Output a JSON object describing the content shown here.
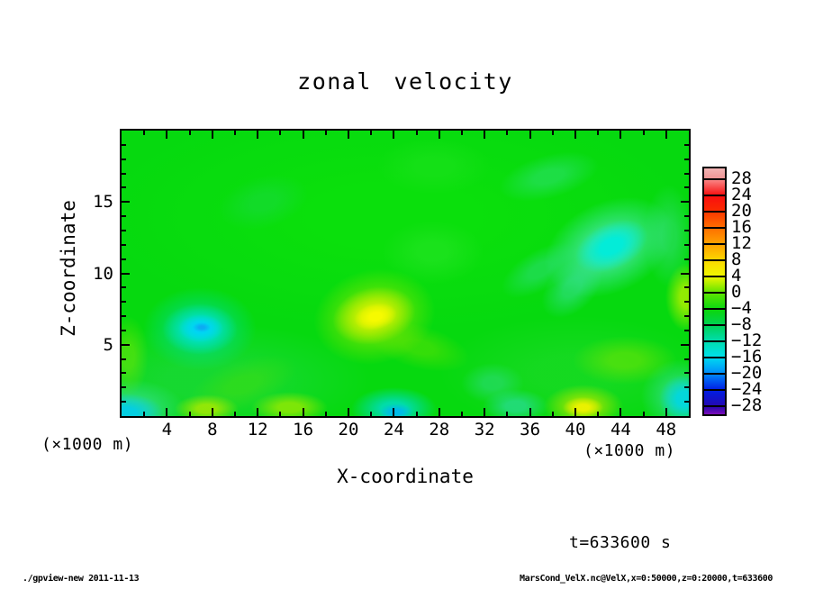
{
  "chart": {
    "title": "zonal velocity",
    "xlabel": "X-coordinate",
    "ylabel": "Z-coordinate",
    "x_unit": "(×1000 m)",
    "y_unit": "(×1000 m)",
    "time_label": "t=633600 s"
  },
  "footer": {
    "left": "./gpview-new  2011-11-13",
    "right": "MarsCond_VelX.nc@VelX,x=0:50000,z=0:20000,t=633600"
  },
  "chart_data": {
    "type": "heatmap",
    "subtype": "filled-contour",
    "title": "zonal velocity",
    "xlabel": "X-coordinate (×1000 m)",
    "ylabel": "Z-coordinate (×1000 m)",
    "x_range": [
      0,
      50
    ],
    "z_range": [
      0,
      20
    ],
    "x_major_ticks": [
      4,
      8,
      12,
      16,
      20,
      24,
      28,
      32,
      36,
      40,
      44,
      48
    ],
    "x_minor_ticks": [
      2,
      6,
      10,
      14,
      18,
      22,
      26,
      30,
      34,
      38,
      42,
      46
    ],
    "y_major_ticks": [
      5,
      10,
      15
    ],
    "y_minor_ticks": [
      1,
      2,
      3,
      4,
      6,
      7,
      8,
      9,
      11,
      12,
      13,
      14,
      16,
      17,
      18,
      19
    ],
    "contour_interval": 4,
    "levels": [
      -28,
      -24,
      -20,
      -16,
      -12,
      -8,
      -4,
      0,
      4,
      8,
      12,
      16,
      20,
      24,
      28
    ],
    "grid": false,
    "legend_position": "right-colorbar",
    "time_annotation_s": 633600,
    "base_color": "#06d90f",
    "base_value_range": [
      -4,
      4
    ],
    "colorbar": {
      "labels": [
        "28",
        "24",
        "20",
        "16",
        "12",
        "8",
        "4",
        "0",
        "−4",
        "−8",
        "−12",
        "−16",
        "−20",
        "−24",
        "−28"
      ],
      "cells": [
        {
          "range": "> 28",
          "top": "#f2b4b4",
          "bottom": "#ee9595"
        },
        {
          "range": "24 to 28",
          "top": "#f98383",
          "bottom": "#f81414"
        },
        {
          "range": "20 to 24",
          "top": "#f90f0f",
          "bottom": "#fa2a00"
        },
        {
          "range": "16 to 20",
          "top": "#fb3a00",
          "bottom": "#fe6c00"
        },
        {
          "range": "12 to 16",
          "top": "#fe7200",
          "bottom": "#fe9f00"
        },
        {
          "range": "8 to 12",
          "top": "#fea400",
          "bottom": "#fcd400"
        },
        {
          "range": "4 to 8",
          "top": "#fbda00",
          "bottom": "#f0f600"
        },
        {
          "range": "0 to 4",
          "top": "#e8f600",
          "bottom": "#66e600"
        },
        {
          "range": "-4 to 0",
          "top": "#5ce400",
          "bottom": "#10d810"
        },
        {
          "range": "-8 to -4",
          "top": "#0cd60c",
          "bottom": "#00d250"
        },
        {
          "range": "-12 to -8",
          "top": "#00d25a",
          "bottom": "#00dcaa"
        },
        {
          "range": "-16 to -12",
          "top": "#00dcb0",
          "bottom": "#00e0ea"
        },
        {
          "range": "-20 to -16",
          "top": "#00d6f0",
          "bottom": "#0090fa"
        },
        {
          "range": "-24 to -20",
          "top": "#0084fa",
          "bottom": "#0122e4"
        },
        {
          "range": "-28 to -24",
          "top": "#011ee2",
          "bottom": "#2209b4"
        },
        {
          "range": "< -28",
          "top": "#2b07ae",
          "bottom": "#7c0db8"
        }
      ]
    },
    "washes": [
      {
        "name": "upper-green",
        "x": 24,
        "z": 14,
        "rx": 26,
        "rz": 8,
        "rot": 0,
        "color": "#0ee609",
        "opacity": 0.5,
        "value": -2
      },
      {
        "name": "lowerleft-green",
        "x": 8,
        "z": 2.5,
        "rx": 14,
        "rz": 4,
        "rot": 0,
        "color": "#2ad858",
        "opacity": 0.45,
        "value": -4
      },
      {
        "name": "lowerright-green",
        "x": 40,
        "z": 3,
        "rx": 12,
        "rz": 4,
        "rot": 0,
        "color": "#30da40",
        "opacity": 0.35,
        "value": -3
      }
    ],
    "features": [
      {
        "name": "topleft-teal",
        "x": 12.5,
        "z": 15.0,
        "rx": 4.0,
        "rz": 1.8,
        "rot": -15,
        "color": "#26d468",
        "opacity": 0.3,
        "value": -6
      },
      {
        "name": "top-streak",
        "x": 27.5,
        "z": 17.5,
        "rx": 5.0,
        "rz": 2.0,
        "rot": 0,
        "color": "#22e222",
        "opacity": 0.45,
        "value": -1
      },
      {
        "name": "midright-lightgreen",
        "x": 27.4,
        "z": 11.5,
        "rx": 4.5,
        "rz": 2.2,
        "rot": 0,
        "color": "#2ae42a",
        "opacity": 0.5,
        "value": -1
      },
      {
        "name": "teal-arc-upper",
        "x": 37.7,
        "z": 16.8,
        "rx": 4.5,
        "rz": 1.5,
        "rot": -15,
        "color": "#3ce098",
        "opacity": 0.4,
        "value": -6
      },
      {
        "name": "topright-cyan-halo",
        "x": 43.0,
        "z": 11.8,
        "rx": 6.0,
        "rz": 3.2,
        "rot": -25,
        "color": "#4ae6b6",
        "opacity": 0.8,
        "value": -8
      },
      {
        "name": "topright-cyan-core",
        "x": 43.2,
        "z": 11.9,
        "rx": 3.4,
        "rz": 1.6,
        "rot": -25,
        "color": "#00ecdc",
        "opacity": 0.95,
        "value": -12
      },
      {
        "name": "teal-arc-lower",
        "x": 36.9,
        "z": 10.2,
        "rx": 3.8,
        "rz": 1.4,
        "rot": -30,
        "color": "#35dd90",
        "opacity": 0.45,
        "value": -6
      },
      {
        "name": "topright-cyan-tail",
        "x": 39.7,
        "z": 9.0,
        "rx": 3.2,
        "rz": 1.6,
        "rot": -45,
        "color": "#3cdea6",
        "opacity": 0.5,
        "value": -7
      },
      {
        "name": "rightedge-teal",
        "x": 48.2,
        "z": 12.6,
        "rx": 2.2,
        "rz": 3.6,
        "rot": 0,
        "color": "#44de9e",
        "opacity": 0.4,
        "value": -6
      },
      {
        "name": "rightedge-yellowgreen",
        "x": 49.8,
        "z": 8.3,
        "rx": 1.9,
        "rz": 2.4,
        "rot": 0,
        "color": "#aaee00",
        "opacity": 0.85,
        "value": 3
      },
      {
        "name": "left-cyan-halo",
        "x": 6.9,
        "z": 6.1,
        "rx": 5.0,
        "rz": 2.9,
        "rot": 0,
        "color": "#00dc8c",
        "opacity": 0.8,
        "value": -8
      },
      {
        "name": "left-cyan-mid",
        "x": 6.9,
        "z": 6.1,
        "rx": 3.3,
        "rz": 1.8,
        "rot": 0,
        "color": "#00e2d2",
        "opacity": 0.9,
        "value": -12
      },
      {
        "name": "left-cyan-core",
        "x": 7.0,
        "z": 6.15,
        "rx": 2.0,
        "rz": 1.0,
        "rot": 0,
        "color": "#00d4f6",
        "opacity": 0.95,
        "value": -16
      },
      {
        "name": "left-cyan-dot",
        "x": 7.05,
        "z": 6.2,
        "rx": 0.8,
        "rz": 0.35,
        "rot": 0,
        "color": "#0caaf2",
        "opacity": 0.95,
        "value": -18
      },
      {
        "name": "midleft-band",
        "x": 10.7,
        "z": 2.2,
        "rx": 5.0,
        "rz": 1.7,
        "rot": -20,
        "color": "#55e000",
        "opacity": 0.35,
        "value": 1
      },
      {
        "name": "yellow-halo",
        "x": 22.3,
        "z": 7.0,
        "rx": 5.4,
        "rz": 3.3,
        "rot": -12,
        "color": "#86e800",
        "opacity": 0.8,
        "value": 2
      },
      {
        "name": "yellow-mid",
        "x": 22.3,
        "z": 7.0,
        "rx": 3.7,
        "rz": 2.0,
        "rot": -12,
        "color": "#d8f200",
        "opacity": 0.9,
        "value": 4
      },
      {
        "name": "yellow-core",
        "x": 22.4,
        "z": 7.0,
        "rx": 1.9,
        "rz": 0.9,
        "rot": -12,
        "color": "#f8fa00",
        "opacity": 0.95,
        "value": 7
      },
      {
        "name": "yellow-ridge",
        "x": 26.2,
        "z": 4.9,
        "rx": 4.6,
        "rz": 1.5,
        "rot": 15,
        "color": "#7ae400",
        "opacity": 0.4,
        "value": 2
      },
      {
        "name": "bottomleft-cyan-halo",
        "x": 0.6,
        "z": 0.4,
        "rx": 5.0,
        "rz": 2.2,
        "rot": 0,
        "color": "#3ce0a8",
        "opacity": 0.7,
        "value": -8
      },
      {
        "name": "bottomleft-cyan-core",
        "x": 0.3,
        "z": 0.2,
        "rx": 3.4,
        "rz": 1.4,
        "rot": 0,
        "color": "#00ccec",
        "opacity": 0.9,
        "value": -13
      },
      {
        "name": "bottom-yellowgreen-a",
        "x": 7.5,
        "z": 0.5,
        "rx": 2.8,
        "rz": 1.0,
        "rot": 0,
        "color": "#b0ea00",
        "opacity": 0.8,
        "value": 4
      },
      {
        "name": "bottom-yellowgreen-b",
        "x": 14.8,
        "z": 0.6,
        "rx": 3.4,
        "rz": 1.1,
        "rot": 0,
        "color": "#a2ea00",
        "opacity": 0.75,
        "value": 3
      },
      {
        "name": "bottomcenter-cyan-halo",
        "x": 24.0,
        "z": 0.5,
        "rx": 3.8,
        "rz": 1.5,
        "rot": 0,
        "color": "#00dcc4",
        "opacity": 0.85,
        "value": -10
      },
      {
        "name": "bottomcenter-cyan-core",
        "x": 24.2,
        "z": 0.3,
        "rx": 1.5,
        "rz": 0.6,
        "rot": 0,
        "color": "#00b6f0",
        "opacity": 0.9,
        "value": -14
      },
      {
        "name": "midbottom-teal",
        "x": 32.7,
        "z": 2.3,
        "rx": 2.8,
        "rz": 1.4,
        "rot": 0,
        "color": "#30dc88",
        "opacity": 0.5,
        "value": -6
      },
      {
        "name": "bottom-teal",
        "x": 34.7,
        "z": 0.7,
        "rx": 2.9,
        "rz": 1.2,
        "rot": 0,
        "color": "#2adc9c",
        "opacity": 0.7,
        "value": -8
      },
      {
        "name": "midright-yellowgreen",
        "x": 44.4,
        "z": 3.9,
        "rx": 4.6,
        "rz": 1.7,
        "rot": 0,
        "color": "#7ce600",
        "opacity": 0.5,
        "value": 2
      },
      {
        "name": "bottom-yellow-halo",
        "x": 40.7,
        "z": 0.7,
        "rx": 3.5,
        "rz": 1.5,
        "rot": 0,
        "color": "#9ee600",
        "opacity": 0.9,
        "value": 3
      },
      {
        "name": "bottom-yellow-core",
        "x": 40.7,
        "z": 0.6,
        "rx": 1.8,
        "rz": 0.75,
        "rot": 0,
        "color": "#eef200",
        "opacity": 0.95,
        "value": 6
      },
      {
        "name": "rightlow-cyan-halo",
        "x": 49.2,
        "z": 1.4,
        "rx": 3.4,
        "rz": 2.6,
        "rot": 0,
        "color": "#3ce0b0",
        "opacity": 0.6,
        "value": -8
      },
      {
        "name": "rightlow-cyan-core",
        "x": 49.6,
        "z": 1.2,
        "rx": 2.2,
        "rz": 1.7,
        "rot": 0,
        "color": "#00d6e6",
        "opacity": 0.9,
        "value": -12
      },
      {
        "name": "leftedge-yellowgreen",
        "x": 0.6,
        "z": 4.2,
        "rx": 1.8,
        "rz": 2.8,
        "rot": 0,
        "color": "#84e800",
        "opacity": 0.45,
        "value": 2
      }
    ]
  }
}
